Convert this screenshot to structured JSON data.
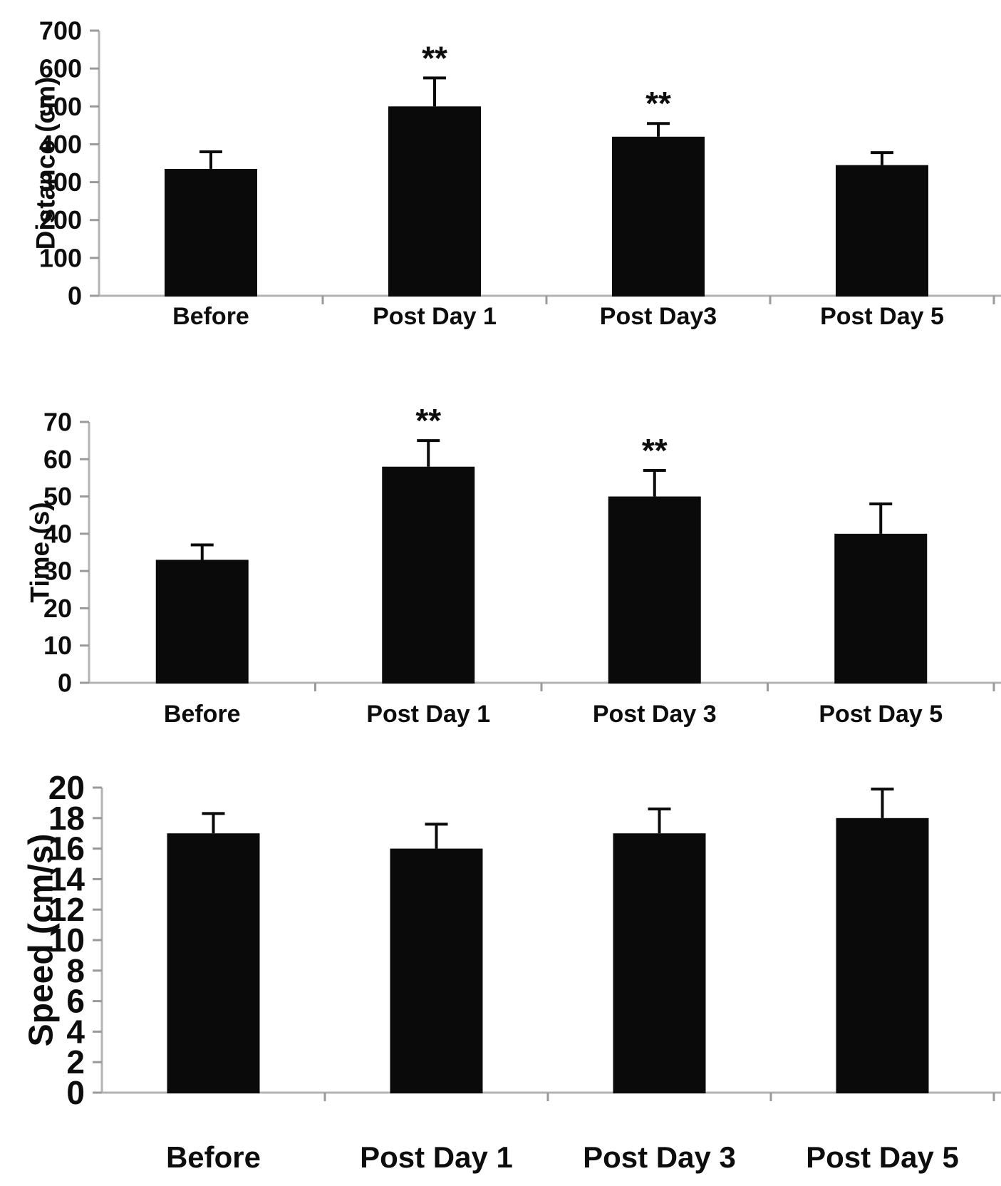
{
  "figure": {
    "background": "#ffffff",
    "description": "Three stacked bar charts with error bars: Distance, Time, Speed across four timepoints"
  },
  "colors": {
    "bar": "#0a0a0a",
    "axis_line": "#b3b3b3",
    "tick_mark": "#9a9a9a",
    "text": "#0d0d0d",
    "error_bar": "#0a0a0a"
  },
  "significance_symbol": "**",
  "chart_data": [
    {
      "type": "bar",
      "title": "",
      "xlabel": "",
      "ylabel": "Distance (cm)",
      "categories": [
        "Before",
        "Post Day 1",
        "Post Day3",
        "Post Day 5"
      ],
      "values": [
        335,
        500,
        420,
        345
      ],
      "errors_up": [
        45,
        75,
        35,
        33
      ],
      "significance": [
        "",
        "**",
        "**",
        ""
      ],
      "ylim": [
        0,
        700
      ],
      "yticks": [
        0,
        100,
        200,
        300,
        400,
        500,
        600,
        700
      ],
      "grid": false,
      "legend": null
    },
    {
      "type": "bar",
      "title": "",
      "xlabel": "",
      "ylabel": "Time (s)",
      "categories": [
        "Before",
        "Post Day 1",
        "Post Day 3",
        "Post Day 5"
      ],
      "values": [
        33,
        58,
        50,
        40
      ],
      "errors_up": [
        4,
        7,
        7,
        8
      ],
      "significance": [
        "",
        "**",
        "**",
        ""
      ],
      "ylim": [
        0,
        70
      ],
      "yticks": [
        0,
        10,
        20,
        30,
        40,
        50,
        60,
        70
      ],
      "grid": false,
      "legend": null
    },
    {
      "type": "bar",
      "title": "",
      "xlabel": "",
      "ylabel": "Speed (cm/s)",
      "categories": [
        "Before",
        "Post Day 1",
        "Post Day 3",
        "Post Day 5"
      ],
      "values": [
        17,
        16,
        17,
        18
      ],
      "errors_up": [
        1.3,
        1.6,
        1.6,
        1.9
      ],
      "significance": [
        "",
        "",
        "",
        ""
      ],
      "ylim": [
        0,
        20
      ],
      "yticks": [
        0,
        2,
        4,
        6,
        8,
        10,
        12,
        14,
        16,
        18,
        20
      ],
      "grid": false,
      "legend": null
    }
  ]
}
